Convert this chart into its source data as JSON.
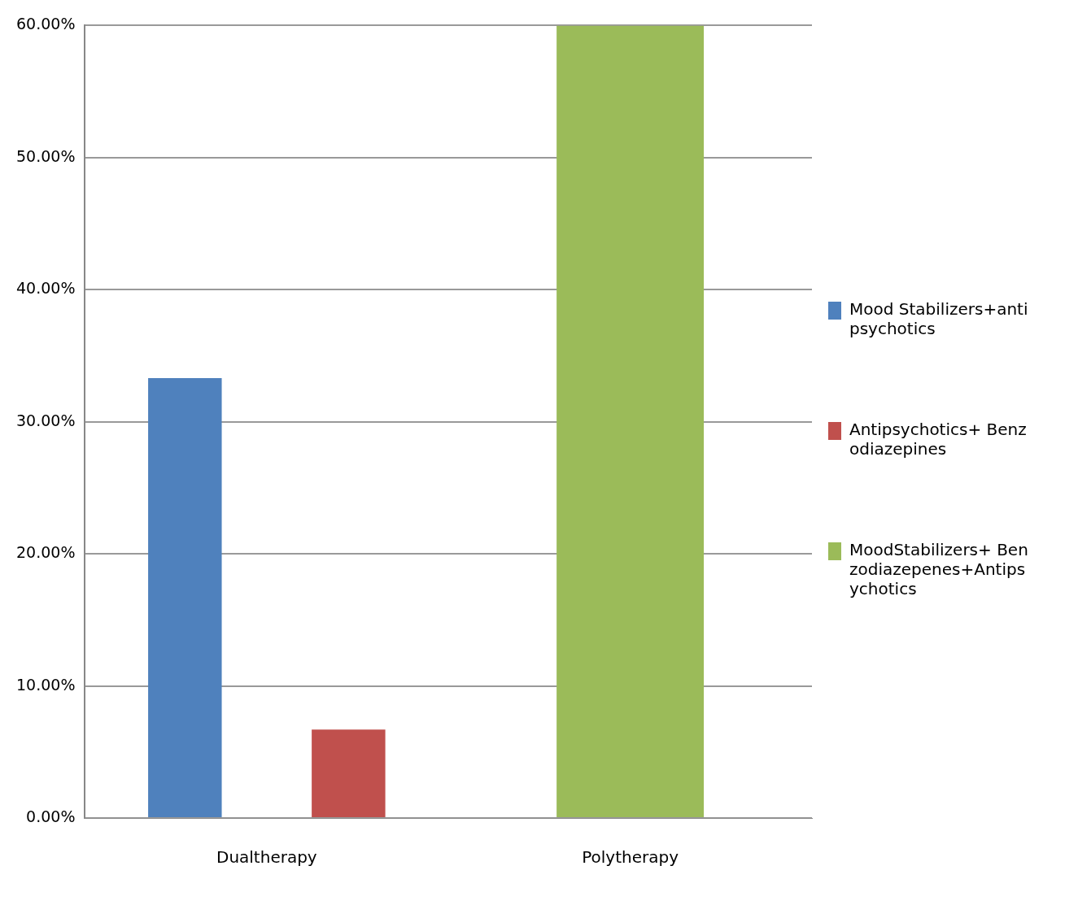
{
  "chart_data": {
    "type": "bar",
    "categories": [
      "Dualtherapy",
      "Polytherapy"
    ],
    "series": [
      {
        "name": "Mood Stabilizers+antipsychotics",
        "color": "#4f81bd",
        "values": [
          33.3,
          null
        ]
      },
      {
        "name": "Antipsychotics+ Benzodiazepines",
        "color": "#c0504d",
        "values": [
          6.7,
          null
        ]
      },
      {
        "name": "MoodStabilizers+ Benzodiazepenes+Antipsychotics",
        "color": "#9bbb59",
        "values": [
          null,
          60
        ]
      }
    ],
    "ylim": [
      0,
      60
    ],
    "yticks": [
      {
        "value": 0,
        "label": "0.00%"
      },
      {
        "value": 10,
        "label": "10.00%"
      },
      {
        "value": 20,
        "label": "20.00%"
      },
      {
        "value": 30,
        "label": "30.00%"
      },
      {
        "value": 40,
        "label": "40.00%"
      },
      {
        "value": 50,
        "label": "50.00%"
      },
      {
        "value": 60,
        "label": "60.00%"
      }
    ],
    "grid": "y",
    "legend": "right"
  }
}
